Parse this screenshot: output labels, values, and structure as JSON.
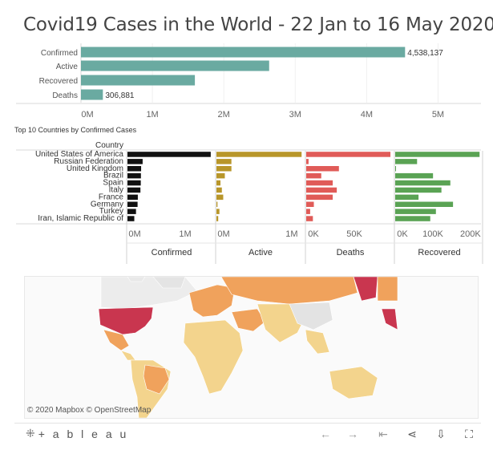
{
  "title": "Covid19 Cases in the  World - 22 Jan to 16 May 2020",
  "subtitle": "Top 10 Countries by Confirmed Cases",
  "colors": {
    "summary_bar": "#6aaaa1",
    "confirmed": "#111111",
    "active": "#b8962a",
    "deaths": "#e05b58",
    "recovered": "#5aa354",
    "map_high": "#c9364f",
    "map_mid": "#f0a25c",
    "map_low": "#f3d48d"
  },
  "chart_data": [
    {
      "type": "bar",
      "orientation": "horizontal",
      "categories": [
        "Confirmed",
        "Active",
        "Recovered",
        "Deaths"
      ],
      "values": [
        4538137,
        2635000,
        1595000,
        306881
      ],
      "data_labels": [
        "4,538,137",
        "",
        "",
        "306,881"
      ],
      "x_ticks": [
        "0M",
        "1M",
        "2M",
        "3M",
        "4M",
        "5M"
      ],
      "xlim": [
        0,
        5500000
      ]
    },
    {
      "type": "bar",
      "orientation": "horizontal",
      "row_header": "Country",
      "categories": [
        "United States of America",
        "Russian Federation",
        "United Kingdom",
        "Brazil",
        "Spain",
        "Italy",
        "France",
        "Germany",
        "Turkey",
        "Iran, Islamic Republic of"
      ],
      "panels": [
        {
          "name": "Confirmed",
          "values": [
            1442824,
            262843,
            236711,
            233142,
            230698,
            224760,
            179630,
            175233,
            148067,
            118392
          ],
          "ticks": [
            "0M",
            "1M"
          ],
          "xlim": [
            0,
            1500000
          ]
        },
        {
          "name": "Active",
          "values": [
            1131147,
            198848,
            199000,
            111500,
            53500,
            72070,
            90100,
            13700,
            39600,
            23600
          ],
          "ticks": [
            "0M",
            "1M"
          ],
          "xlim": [
            0,
            1150000
          ]
        },
        {
          "name": "Deaths",
          "values": [
            87530,
            2418,
            33998,
            15633,
            27563,
            31763,
            27529,
            7935,
            4096,
            6937
          ],
          "ticks": [
            "0K",
            "50K"
          ],
          "xlim": [
            0,
            90000
          ]
        },
        {
          "name": "Recovered",
          "values": [
            224147,
            58098,
            1000,
            100459,
            146446,
            122810,
            61960,
            153600,
            108137,
            93147
          ],
          "ticks": [
            "0K",
            "100K",
            "200K"
          ],
          "xlim": [
            0,
            230000
          ]
        }
      ]
    }
  ],
  "map": {
    "attribution": "© 2020 Mapbox © OpenStreetMap"
  },
  "toolbar": {
    "logo_text": "+ a b l e a u",
    "logo_mark": "⁜",
    "undo_icon": "←",
    "redo_icon": "→",
    "revert_icon": "⇤",
    "share_icon": "⋖",
    "download_icon": "⇩",
    "fullscreen_icon": "⛶"
  }
}
